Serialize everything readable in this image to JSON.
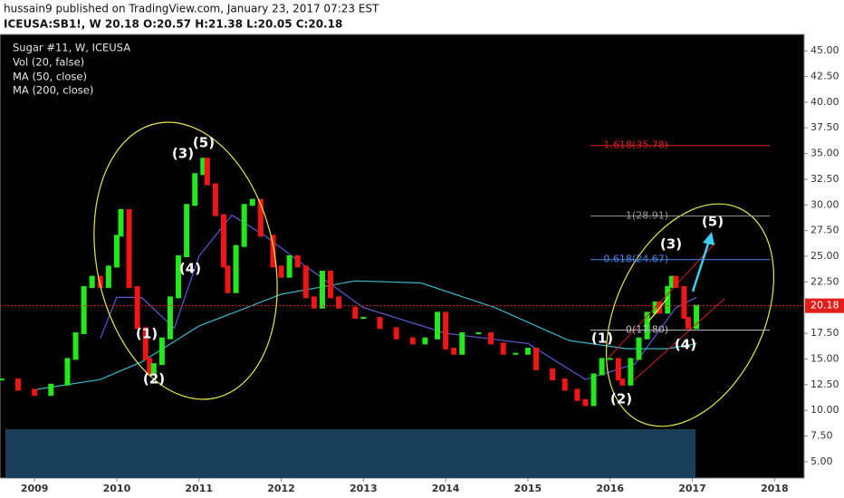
{
  "header": {
    "line1": "hussain9 published on TradingView.com, January 23, 2017 07:23 EST",
    "line2": "ICEUSA:SB1!, W  20.18  O:20.57  H:21.38  L:20.05  C:20.18"
  },
  "chart_data": {
    "type": "candle-line",
    "legend": [
      "Sugar #11, W, ICEUSA",
      "Vol (20, false)",
      "MA (50, close)",
      "MA (200, close)"
    ],
    "xlim": [
      2008.58,
      2018.36
    ],
    "xticks": [
      2009,
      2010,
      2011,
      2012,
      2013,
      2014,
      2015,
      2016,
      2017,
      2018
    ],
    "ylim": [
      3.4,
      46.6
    ],
    "yticks": [
      {
        "value": 5,
        "label": "5.00"
      },
      {
        "value": 7.5,
        "label": "7.50"
      },
      {
        "value": 10,
        "label": "10.00"
      },
      {
        "value": 12.5,
        "label": "12.50"
      },
      {
        "value": 15,
        "label": "15.00"
      },
      {
        "value": 17.5,
        "label": "17.50"
      },
      {
        "value": 20,
        "label": "20.00"
      },
      {
        "value": 22.5,
        "label": "22.50"
      },
      {
        "value": 25,
        "label": "25.00"
      },
      {
        "value": 27.5,
        "label": "27.50"
      },
      {
        "value": 30,
        "label": "30.00"
      },
      {
        "value": 32.5,
        "label": "32.50"
      },
      {
        "value": 35,
        "label": "35.00"
      },
      {
        "value": 37.5,
        "label": "37.50"
      },
      {
        "value": 40,
        "label": "40.00"
      },
      {
        "value": 42.5,
        "label": "42.50"
      },
      {
        "value": 45,
        "label": "45.00"
      }
    ],
    "last_price": 20.18,
    "last_color": "#e0201b",
    "price": {
      "up_color": "#22e81c",
      "down_color": "#f01616",
      "x": [
        2008.6,
        2008.8,
        2009.0,
        2009.2,
        2009.4,
        2009.5,
        2009.6,
        2009.7,
        2009.8,
        2009.9,
        2010.0,
        2010.05,
        2010.15,
        2010.25,
        2010.35,
        2010.4,
        2010.45,
        2010.55,
        2010.65,
        2010.75,
        2010.85,
        2010.95,
        2011.05,
        2011.1,
        2011.2,
        2011.3,
        2011.35,
        2011.45,
        2011.55,
        2011.65,
        2011.75,
        2011.9,
        2012.0,
        2012.1,
        2012.2,
        2012.3,
        2012.4,
        2012.5,
        2012.6,
        2012.7,
        2012.9,
        2013.0,
        2013.2,
        2013.4,
        2013.6,
        2013.75,
        2013.9,
        2014.0,
        2014.1,
        2014.2,
        2014.4,
        2014.55,
        2014.7,
        2014.85,
        2015.0,
        2015.1,
        2015.3,
        2015.45,
        2015.6,
        2015.7,
        2015.8,
        2015.9,
        2016.0,
        2016.1,
        2016.15,
        2016.25,
        2016.35,
        2016.45,
        2016.55,
        2016.6,
        2016.7,
        2016.75,
        2016.8,
        2016.9,
        2016.95,
        2017.05
      ],
      "values": [
        13,
        12,
        11.5,
        12.5,
        15,
        17.5,
        22,
        23,
        22,
        24,
        27,
        29.5,
        22,
        18,
        15,
        13.5,
        14.5,
        17,
        21,
        25,
        30,
        33,
        34.5,
        32,
        29,
        24,
        21.5,
        26,
        30,
        30.5,
        27,
        24,
        23,
        25,
        24,
        21,
        20,
        23.5,
        21,
        20,
        19,
        19,
        18,
        17,
        16.5,
        17,
        19.5,
        16,
        15.5,
        17.5,
        17.5,
        16.5,
        15.5,
        15.5,
        16,
        14,
        13,
        12,
        11,
        10.5,
        13.5,
        15,
        15,
        13,
        12.5,
        15,
        17,
        19.5,
        20.5,
        19.5,
        22,
        23,
        22,
        19,
        18,
        20.18
      ]
    },
    "series": [
      {
        "name": "MA (50, close)",
        "color": "#5b5bd6",
        "x": [
          2009.8,
          2010.0,
          2010.3,
          2010.7,
          2011.0,
          2011.4,
          2011.8,
          2012.3,
          2013.0,
          2014.0,
          2015.0,
          2015.7,
          2016.3,
          2016.8,
          2017.05
        ],
        "values": [
          17,
          21,
          21,
          18,
          25,
          29,
          27,
          24,
          20,
          17.5,
          16.5,
          13,
          14.5,
          20,
          21
        ]
      },
      {
        "name": "MA (200, close)",
        "color": "#36b8c9",
        "x": [
          2009.0,
          2009.8,
          2010.3,
          2011.0,
          2012.0,
          2012.9,
          2013.7,
          2014.6,
          2015.5,
          2016.2,
          2016.7,
          2017.05
        ],
        "values": [
          12,
          13,
          14.7,
          18.2,
          21.3,
          22.6,
          22.4,
          20,
          16.8,
          16,
          16,
          16.5
        ]
      }
    ],
    "fib_levels": [
      {
        "label": "1.618(35.78)",
        "value": 35.78,
        "color": "#e0201b"
      },
      {
        "label": "1(28.91)",
        "value": 28.91,
        "color": "#9a9a9a"
      },
      {
        "label": "0.618(24.67)",
        "value": 24.67,
        "color": "#4a86e8"
      },
      {
        "label": "0(17.80)",
        "value": 17.8,
        "color": "#bdbdbd"
      }
    ],
    "waves": [
      "(5)",
      "(3)",
      "(4)",
      "(1)",
      "(2)",
      "(1)",
      "(2)",
      "(3)",
      "(5)",
      "(4)"
    ]
  }
}
